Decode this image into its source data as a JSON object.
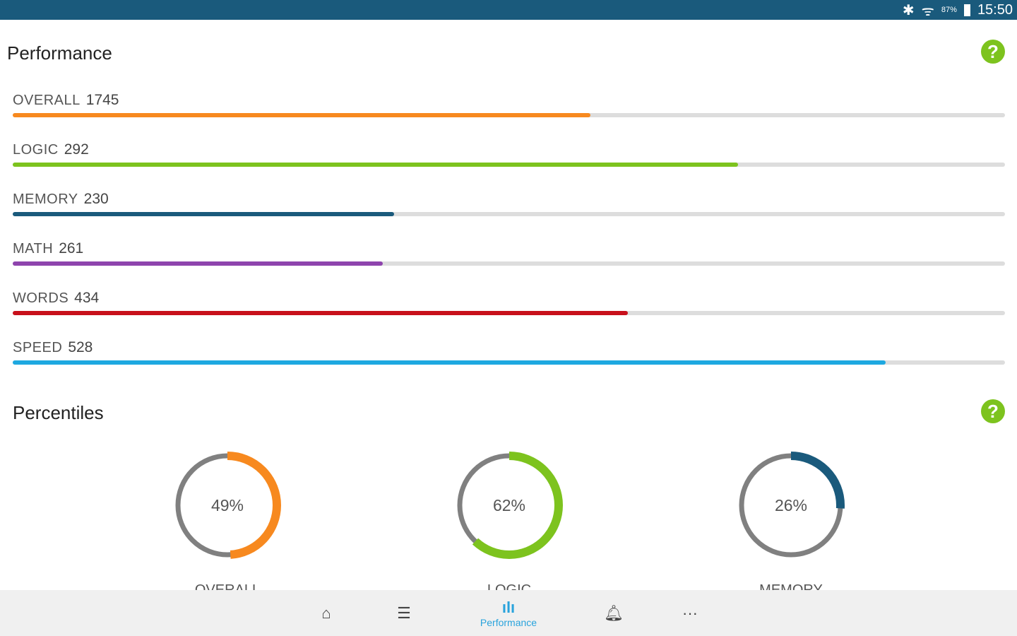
{
  "status": {
    "battery": "87%",
    "time": "15:50"
  },
  "performance": {
    "title": "Performance",
    "metrics": [
      {
        "label": "OVERALL",
        "value": "1745",
        "fraction": 0.582,
        "color": "#f7891f"
      },
      {
        "label": "LOGIC",
        "value": "292",
        "fraction": 0.731,
        "color": "#7dc31e"
      },
      {
        "label": "MEMORY",
        "value": "230",
        "fraction": 0.384,
        "color": "#1a5a7c"
      },
      {
        "label": "MATH",
        "value": "261",
        "fraction": 0.373,
        "color": "#8e44ad"
      },
      {
        "label": "WORDS",
        "value": "434",
        "fraction": 0.62,
        "color": "#c8101b"
      },
      {
        "label": "SPEED",
        "value": "528",
        "fraction": 0.88,
        "color": "#1ea8e0"
      }
    ]
  },
  "percentiles": {
    "title": "Percentiles",
    "items": [
      {
        "label": "OVERALL",
        "value": "49%",
        "fraction": 0.49,
        "color": "#f7891f"
      },
      {
        "label": "LOGIC",
        "value": "62%",
        "fraction": 0.62,
        "color": "#7dc31e"
      },
      {
        "label": "MEMORY",
        "value": "26%",
        "fraction": 0.26,
        "color": "#1a5a7c"
      }
    ]
  },
  "nav": {
    "active_label": "Performance"
  }
}
